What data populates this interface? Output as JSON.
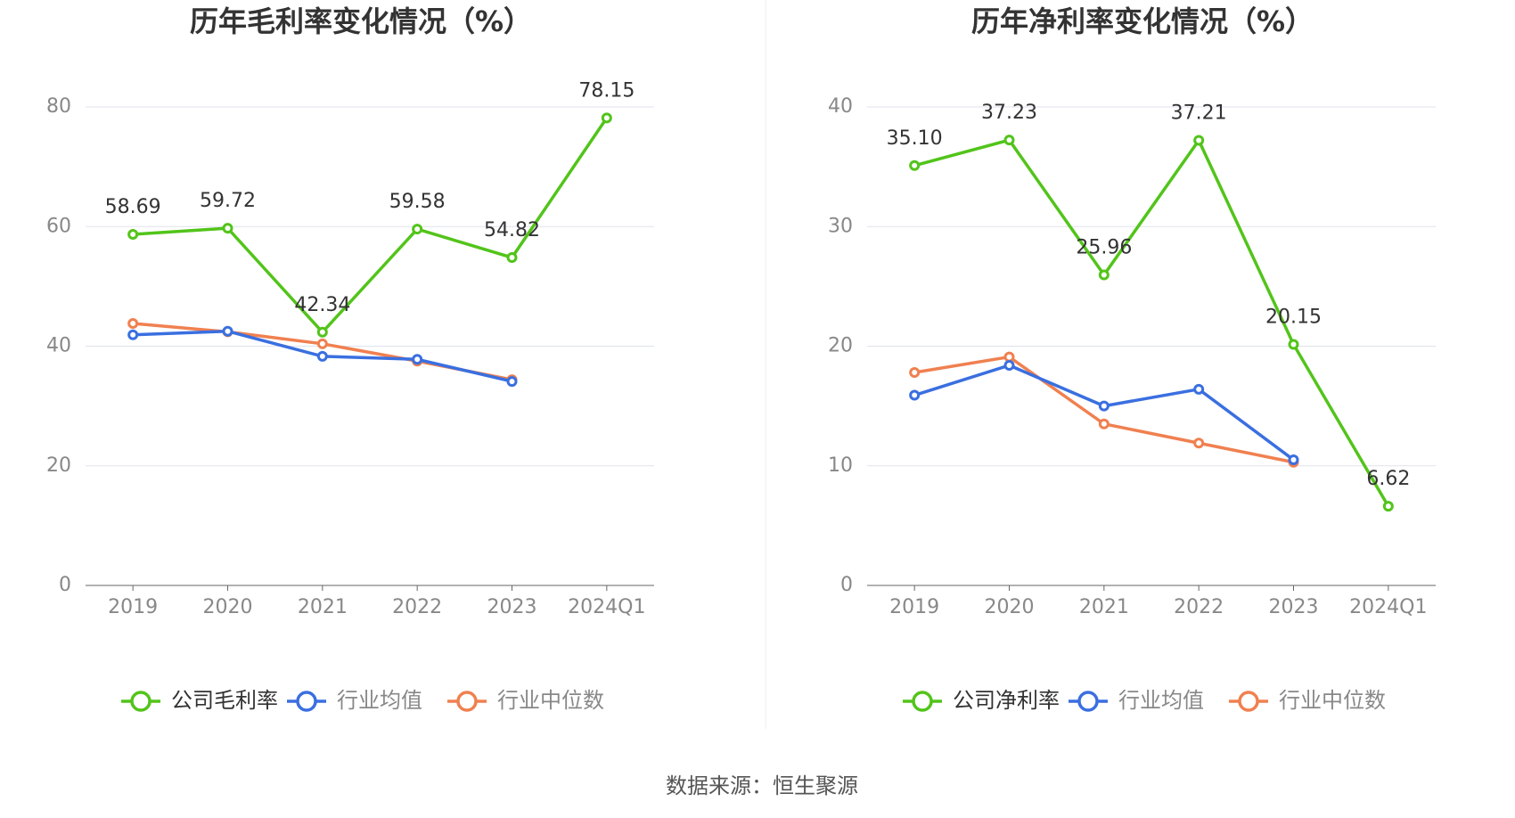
{
  "chart_data": [
    {
      "type": "line",
      "title": "历年毛利率变化情况（%）",
      "categories": [
        "2019",
        "2020",
        "2021",
        "2022",
        "2023",
        "2024Q1"
      ],
      "series": [
        {
          "name": "公司毛利率",
          "color": "#52c41a",
          "values": [
            58.69,
            59.72,
            42.34,
            59.58,
            54.82,
            78.15
          ],
          "value_labels": [
            "58.69",
            "59.72",
            "42.34",
            "59.58",
            "54.82",
            "78.15"
          ]
        },
        {
          "name": "行业均值",
          "color": "#3a6fe0",
          "values": [
            41.9,
            42.5,
            38.3,
            37.8,
            34.1,
            null
          ]
        },
        {
          "name": "行业中位数",
          "color": "#f08050",
          "values": [
            43.8,
            42.4,
            40.4,
            37.5,
            34.4,
            null
          ]
        }
      ],
      "ylim": [
        0,
        80
      ],
      "yticks": [
        0,
        20,
        40,
        60,
        80
      ],
      "grid": true
    },
    {
      "type": "line",
      "title": "历年净利率变化情况（%）",
      "categories": [
        "2019",
        "2020",
        "2021",
        "2022",
        "2023",
        "2024Q1"
      ],
      "series": [
        {
          "name": "公司净利率",
          "color": "#52c41a",
          "values": [
            35.1,
            37.23,
            25.96,
            37.21,
            20.15,
            6.62
          ],
          "value_labels": [
            "35.10",
            "37.23",
            "25.96",
            "37.21",
            "20.15",
            "6.62"
          ]
        },
        {
          "name": "行业均值",
          "color": "#3a6fe0",
          "values": [
            15.9,
            18.4,
            15.0,
            16.4,
            10.5,
            null
          ]
        },
        {
          "name": "行业中位数",
          "color": "#f08050",
          "values": [
            17.8,
            19.1,
            13.5,
            11.9,
            10.3,
            null
          ]
        }
      ],
      "ylim": [
        0,
        40
      ],
      "yticks": [
        0,
        10,
        20,
        30,
        40
      ],
      "grid": true
    }
  ],
  "source": "数据来源：恒生聚源"
}
